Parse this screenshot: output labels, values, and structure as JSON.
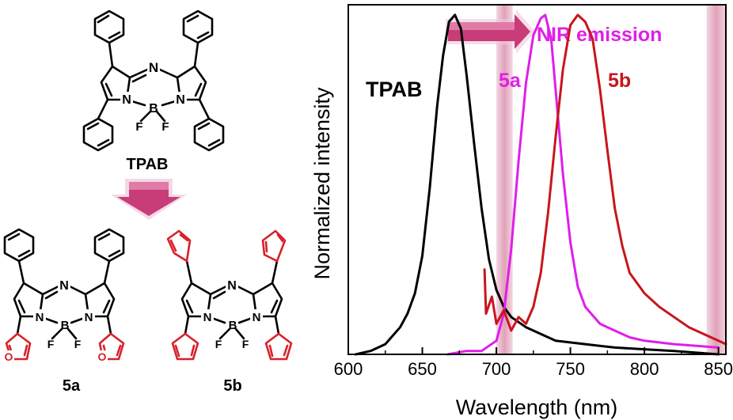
{
  "structures": {
    "tpab_label": "TPAB",
    "a_label": "5a",
    "b_label": "5b",
    "atom_N": "N",
    "atom_B": "B",
    "atom_F": "F",
    "atom_O": "O"
  },
  "arrow_label": "NIR emission",
  "colors": {
    "tpab": "#000000",
    "5a": "#e01ee8",
    "5b": "#c8151c",
    "furyl": "#d9202a",
    "arrow": "#c83c78",
    "nir_band": "#d98aa8"
  },
  "chart_data": {
    "type": "line",
    "xlabel": "Wavelength (nm)",
    "ylabel": "Normalized intensity",
    "xlim": [
      600,
      855
    ],
    "ylim": [
      0,
      1.03
    ],
    "xticks": [
      "600",
      "650",
      "700",
      "750",
      "800",
      "850"
    ],
    "series": [
      {
        "name": "TPAB",
        "color": "#000000",
        "x": [
          605,
          615,
          625,
          635,
          640,
          645,
          650,
          655,
          660,
          664,
          668,
          672,
          676,
          680,
          685,
          690,
          695,
          700,
          705,
          710,
          720,
          730,
          740,
          760,
          780,
          800,
          820,
          850
        ],
        "y": [
          0.0,
          0.01,
          0.03,
          0.08,
          0.12,
          0.18,
          0.29,
          0.49,
          0.73,
          0.88,
          0.98,
          1.0,
          0.96,
          0.82,
          0.62,
          0.43,
          0.28,
          0.19,
          0.14,
          0.11,
          0.08,
          0.06,
          0.04,
          0.03,
          0.02,
          0.015,
          0.01,
          0.0
        ]
      },
      {
        "name": "5a",
        "color": "#e01ee8",
        "x": [
          667,
          680,
          690,
          700,
          705,
          710,
          715,
          720,
          725,
          730,
          733,
          737,
          740,
          745,
          750,
          755,
          760,
          770,
          780,
          790,
          800,
          820,
          850
        ],
        "y": [
          0.0,
          0.01,
          0.01,
          0.04,
          0.12,
          0.31,
          0.57,
          0.8,
          0.94,
          0.99,
          1.0,
          0.93,
          0.78,
          0.53,
          0.33,
          0.2,
          0.14,
          0.09,
          0.07,
          0.05,
          0.04,
          0.03,
          0.02
        ]
      },
      {
        "name": "5b",
        "color": "#c8151c",
        "x": [
          692,
          693,
          697,
          700,
          705,
          710,
          715,
          720,
          725,
          730,
          735,
          740,
          745,
          750,
          755,
          760,
          765,
          770,
          775,
          780,
          785,
          790,
          800,
          810,
          820,
          830,
          840,
          850,
          855
        ],
        "y": [
          0.25,
          0.12,
          0.17,
          0.09,
          0.13,
          0.07,
          0.11,
          0.09,
          0.14,
          0.24,
          0.42,
          0.64,
          0.84,
          0.97,
          1.0,
          0.98,
          0.93,
          0.78,
          0.6,
          0.43,
          0.32,
          0.24,
          0.18,
          0.14,
          0.11,
          0.08,
          0.06,
          0.04,
          0.03
        ]
      }
    ],
    "highlight_bands": [
      [
        700,
        711
      ],
      [
        842,
        855
      ]
    ]
  }
}
